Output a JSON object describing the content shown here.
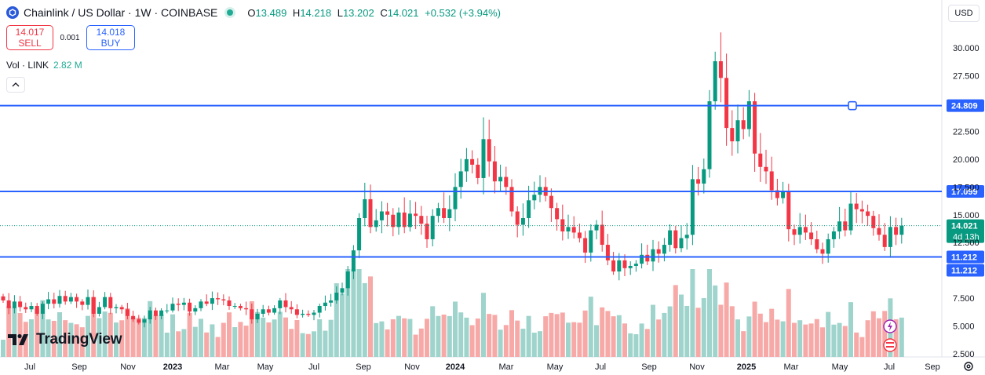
{
  "header": {
    "symbol": "Chainlink / US Dollar · 1W · COINBASE",
    "open_label": "O",
    "open": "13.489",
    "high_label": "H",
    "high": "14.218",
    "low_label": "L",
    "low": "13.202",
    "close_label": "C",
    "close": "14.021",
    "change": "+0.532 (+3.94%)",
    "status_color": "#22ab94"
  },
  "trade": {
    "sell_price": "14.017",
    "sell_label": "SELL",
    "spread": "0.001",
    "buy_price": "14.018",
    "buy_label": "BUY"
  },
  "volume_legend": {
    "label": "Vol · LINK",
    "value": "2.82 M"
  },
  "currency": "USD",
  "branding": "TradingView",
  "colors": {
    "up": "#089981",
    "down": "#f23645",
    "up_vol": "#9fd4cc",
    "down_vol": "#f7a9a7",
    "hline": "#2962ff"
  },
  "chart_data": {
    "type": "candlestick",
    "interval": "1W",
    "y_ticks": [
      "30.000",
      "27.500",
      "22.500",
      "20.000",
      "17.500",
      "15.000",
      "12.500",
      "7.500",
      "5.000",
      "2.500"
    ],
    "x_ticks": [
      "Jul",
      "Sep",
      "Nov",
      "2023",
      "Mar",
      "May",
      "Jul",
      "Sep",
      "Nov",
      "2024",
      "Mar",
      "May",
      "Jul",
      "Sep",
      "Nov",
      "2025",
      "Mar",
      "May",
      "Jul",
      "Sep"
    ],
    "horizontal_lines": [
      {
        "price": 24.809,
        "label": "24.809"
      },
      {
        "price": 17.099,
        "label": "17.099"
      },
      {
        "price": 11.212,
        "label": "11.212"
      }
    ],
    "price_badges": [
      {
        "label": "11.212"
      },
      {
        "label": "14.021",
        "sub": "4d 13h"
      }
    ],
    "last_price": 14.021,
    "closes": [
      7.3,
      6.6,
      7.2,
      6.7,
      6.5,
      6.8,
      6.1,
      7.0,
      7.4,
      7.0,
      7.7,
      7.2,
      7.6,
      7.2,
      6.9,
      7.6,
      6.1,
      6.7,
      7.6,
      6.6,
      6.7,
      6.5,
      5.9,
      5.6,
      5.3,
      5.6,
      6.4,
      5.9,
      6.4,
      6.4,
      7.0,
      6.9,
      7.1,
      6.3,
      6.6,
      7.2,
      7.0,
      7.5,
      7.4,
      7.3,
      6.8,
      6.8,
      6.6,
      6.5,
      5.6,
      6.1,
      6.5,
      6.2,
      6.6,
      7.3,
      6.7,
      6.5,
      6.0,
      6.1,
      6.0,
      6.2,
      6.8,
      7.1,
      7.3,
      8.0,
      8.4,
      9.9,
      11.8,
      14.7,
      16.4,
      13.9,
      14.5,
      15.3,
      15.0,
      13.9,
      15.2,
      13.9,
      15.1,
      14.9,
      14.2,
      12.8,
      14.9,
      15.6,
      14.7,
      15.5,
      17.5,
      18.9,
      20.0,
      19.5,
      18.3,
      21.8,
      19.8,
      18.0,
      18.4,
      17.5,
      15.3,
      14.1,
      14.7,
      16.3,
      16.8,
      17.5,
      16.7,
      15.6,
      14.6,
      13.5,
      13.9,
      13.4,
      12.9,
      11.6,
      13.6,
      14.1,
      12.3,
      10.9,
      9.9,
      10.9,
      10.2,
      10.4,
      10.6,
      11.4,
      10.8,
      11.9,
      11.5,
      12.3,
      13.6,
      12.0,
      12.9,
      13.2,
      18.2,
      17.8,
      19.1,
      25.2,
      28.8,
      27.3,
      22.8,
      21.6,
      23.5,
      22.7,
      25.2,
      20.5,
      19.3,
      18.9,
      17.2,
      16.5,
      17.1,
      13.7,
      13.2,
      13.9,
      13.4,
      12.8,
      11.9,
      11.5,
      12.8,
      13.5,
      14.4,
      13.6,
      16.0,
      15.5,
      15.3,
      14.9,
      13.8,
      13.2,
      12.1,
      13.9,
      13.2,
      14.021
    ],
    "volume_scale_labels": [],
    "volumes_note": "relative volume bars drawn under price candles"
  }
}
